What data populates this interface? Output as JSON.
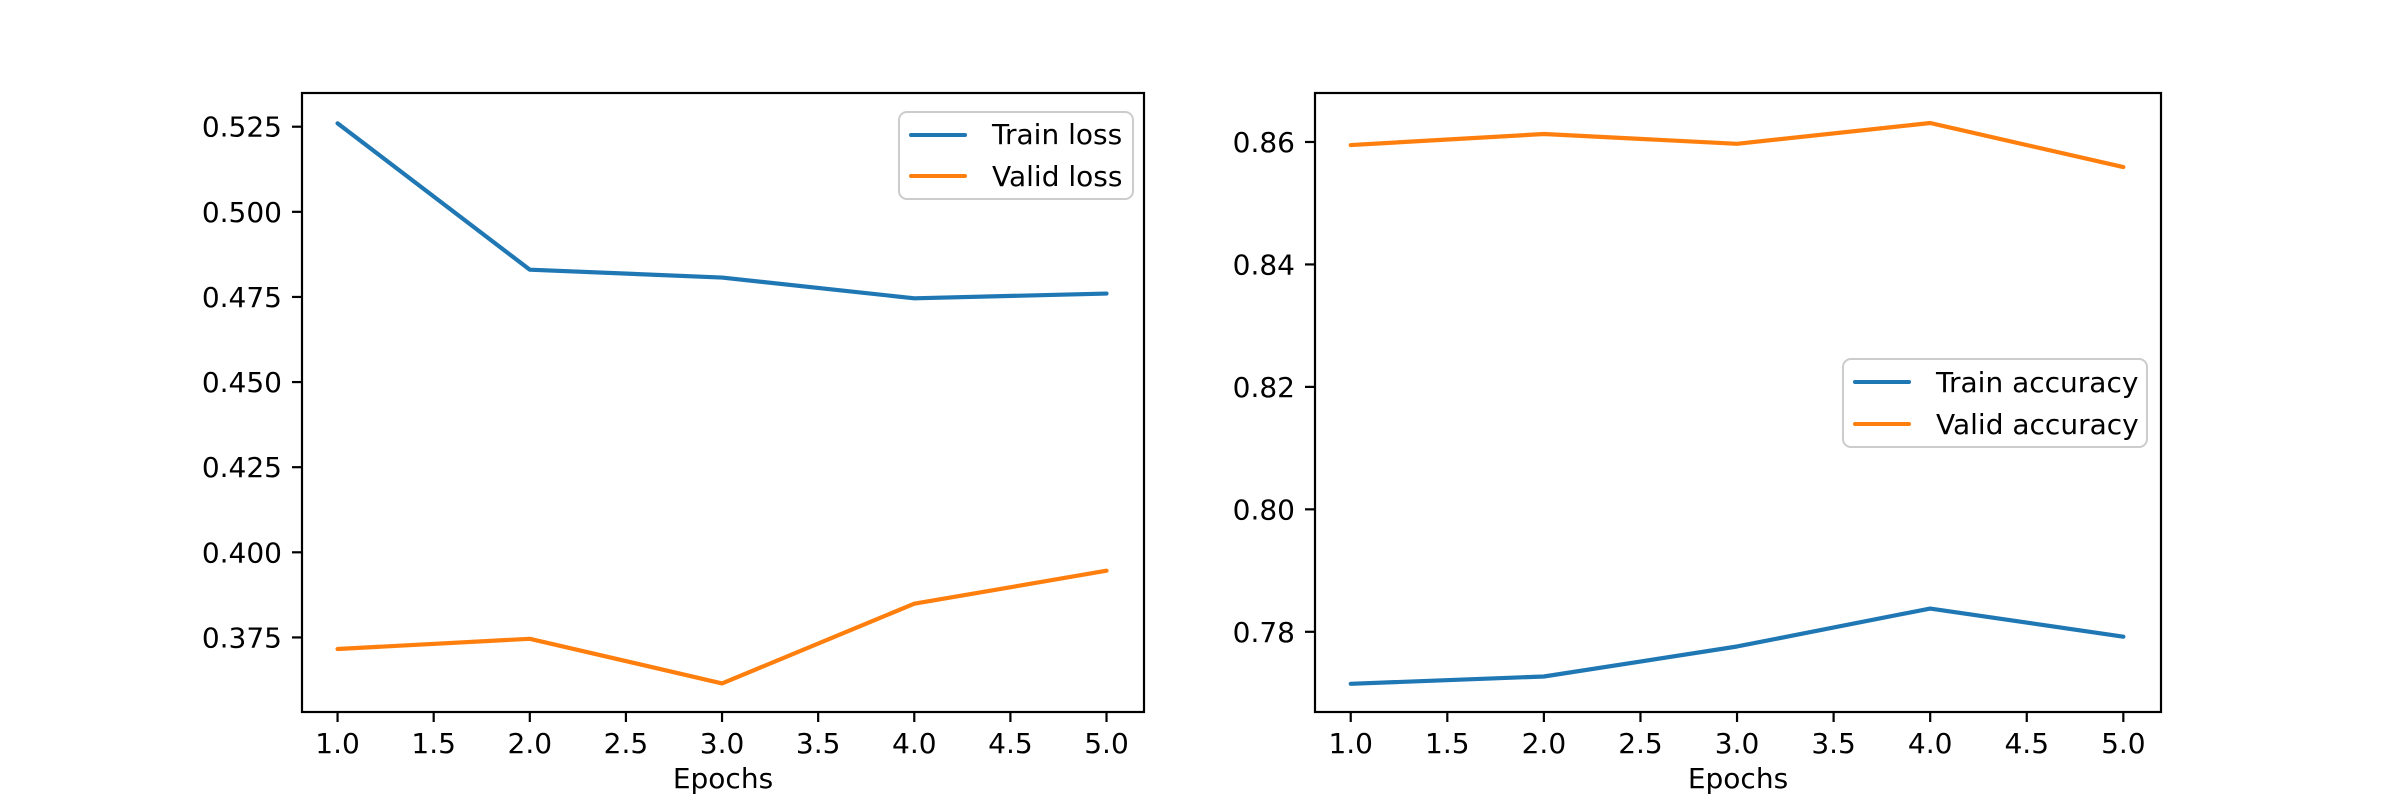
{
  "figure": {
    "background": "#ffffff",
    "axis_color": "#000000",
    "legend_border_color": "#cccccc"
  },
  "chart_data": [
    {
      "id": "loss",
      "type": "line",
      "title": "",
      "xlabel": "Epochs",
      "ylabel": "",
      "grid": false,
      "x": [
        1,
        2,
        3,
        4,
        5
      ],
      "series": [
        {
          "name": "Train loss",
          "color": "#1f77b4",
          "values": [
            0.526,
            0.483,
            0.4807,
            0.4746,
            0.476
          ]
        },
        {
          "name": "Valid loss",
          "color": "#ff7f0e",
          "values": [
            0.3716,
            0.3746,
            0.3615,
            0.3849,
            0.3946
          ]
        }
      ],
      "xlim": [
        0.815,
        5.195
      ],
      "ylim": [
        0.3531,
        0.5349
      ],
      "xticks": {
        "values": [
          1.0,
          1.5,
          2.0,
          2.5,
          3.0,
          3.5,
          4.0,
          4.5,
          5.0
        ],
        "labels": [
          "1.0",
          "1.5",
          "2.0",
          "2.5",
          "3.0",
          "3.5",
          "4.0",
          "4.5",
          "5.0"
        ]
      },
      "yticks": {
        "values": [
          0.375,
          0.4,
          0.425,
          0.45,
          0.475,
          0.5,
          0.525
        ],
        "labels": [
          "0.375",
          "0.400",
          "0.425",
          "0.450",
          "0.475",
          "0.500",
          "0.525"
        ]
      },
      "legend": {
        "position": "upper right",
        "entries": [
          "Train loss",
          "Valid loss"
        ]
      }
    },
    {
      "id": "accuracy",
      "type": "line",
      "title": "",
      "xlabel": "Epochs",
      "ylabel": "",
      "grid": false,
      "x": [
        1,
        2,
        3,
        4,
        5
      ],
      "series": [
        {
          "name": "Train accuracy",
          "color": "#1f77b4",
          "values": [
            0.7715,
            0.7727,
            0.7776,
            0.7838,
            0.7792
          ]
        },
        {
          "name": "Valid accuracy",
          "color": "#ff7f0e",
          "values": [
            0.8595,
            0.8613,
            0.8597,
            0.8631,
            0.8559
          ]
        }
      ],
      "xlim": [
        0.815,
        5.195
      ],
      "ylim": [
        0.7669,
        0.868
      ],
      "xticks": {
        "values": [
          1.0,
          1.5,
          2.0,
          2.5,
          3.0,
          3.5,
          4.0,
          4.5,
          5.0
        ],
        "labels": [
          "1.0",
          "1.5",
          "2.0",
          "2.5",
          "3.0",
          "3.5",
          "4.0",
          "4.5",
          "5.0"
        ]
      },
      "yticks": {
        "values": [
          0.78,
          0.8,
          0.82,
          0.84,
          0.86
        ],
        "labels": [
          "0.78",
          "0.80",
          "0.82",
          "0.84",
          "0.86"
        ]
      },
      "legend": {
        "position": "center right",
        "entries": [
          "Train accuracy",
          "Valid accuracy"
        ]
      }
    }
  ]
}
